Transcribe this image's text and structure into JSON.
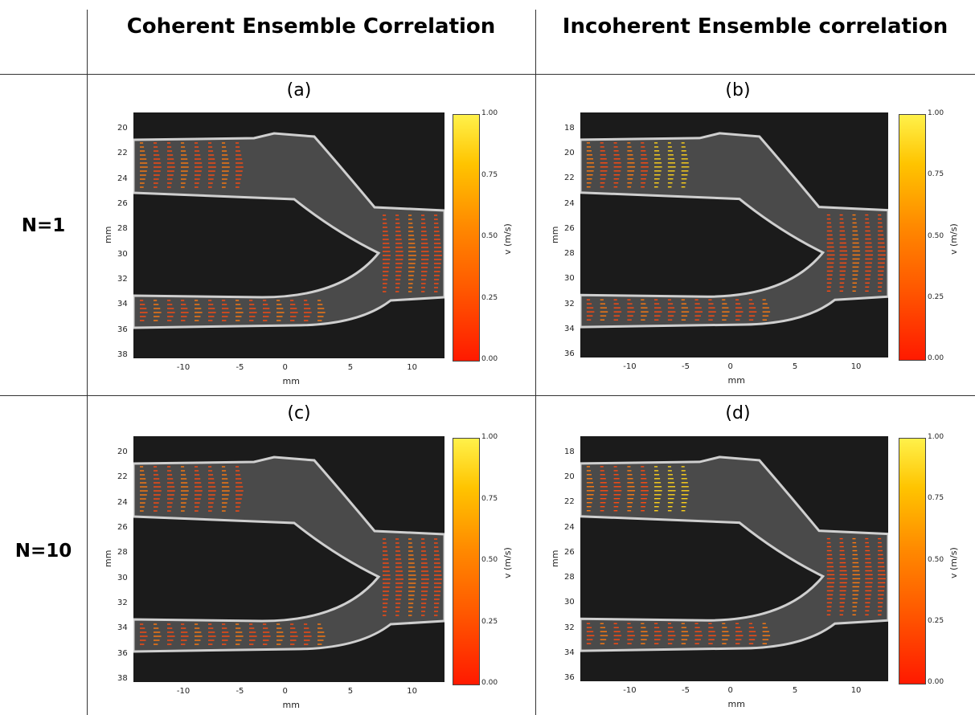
{
  "columns": {
    "coherent": "Coherent Ensemble Correlation",
    "incoherent": "Incoherent Ensemble correlation"
  },
  "rows": {
    "row1": "N=1",
    "row2": "N=10"
  },
  "panels": [
    {
      "label": "(a)",
      "yticks": [
        "20",
        "22",
        "24",
        "26",
        "28",
        "30",
        "32",
        "34",
        "36",
        "38"
      ],
      "highlight": false
    },
    {
      "label": "(b)",
      "yticks": [
        "18",
        "20",
        "22",
        "24",
        "26",
        "28",
        "30",
        "32",
        "34",
        "36"
      ],
      "highlight": true
    },
    {
      "label": "(c)",
      "yticks": [
        "20",
        "22",
        "24",
        "26",
        "28",
        "30",
        "32",
        "34",
        "36",
        "38"
      ],
      "highlight": false
    },
    {
      "label": "(d)",
      "yticks": [
        "18",
        "20",
        "22",
        "24",
        "26",
        "28",
        "30",
        "32",
        "34",
        "36"
      ],
      "highlight": true
    }
  ],
  "axes": {
    "xlabel": "mm",
    "ylabel": "mm",
    "xticks": [
      "-10",
      "-5",
      "0",
      "5",
      "10"
    ]
  },
  "colorbar": {
    "label": "v (m/s)",
    "ticks": [
      "1.00",
      "0.75",
      "0.50",
      "0.25",
      "0.00"
    ]
  }
}
